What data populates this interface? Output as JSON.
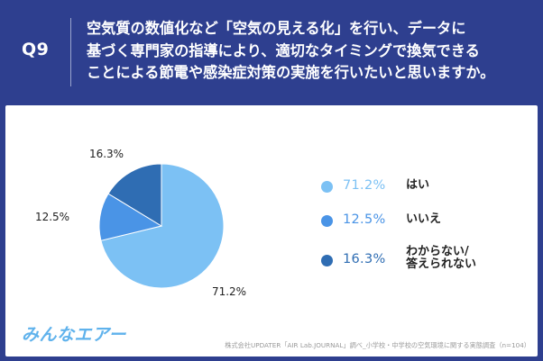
{
  "header": {
    "question_number": "Q9",
    "question_lines": [
      "空気質の数値化など「空気の見える化」を行い、データに",
      "基づく専門家の指導により、適切なタイミングで換気できる",
      "ことによる節電や感染症対策の実施を行いたいと思いますか。"
    ]
  },
  "colors": {
    "header_bg": "#2e3f8f",
    "yes": "#7cc1f4",
    "no": "#4a94e6",
    "unknown": "#2f6db3"
  },
  "chart_data": {
    "type": "pie",
    "start": "12 o'clock",
    "direction": "clockwise",
    "slices": [
      {
        "label": "はい",
        "value": 71.2,
        "display": "71.2%",
        "color": "#7cc1f4"
      },
      {
        "label": "いいえ",
        "value": 12.5,
        "display": "12.5%",
        "color": "#4a94e6"
      },
      {
        "label": "わからない/ 答えられない",
        "value": 16.3,
        "display": "16.3%",
        "color": "#2f6db3"
      }
    ]
  },
  "legend": {
    "items": [
      {
        "pct": "71.2%",
        "label_lines": [
          "はい"
        ],
        "color": "#7cc1f4"
      },
      {
        "pct": "12.5%",
        "label_lines": [
          "いいえ"
        ],
        "color": "#4a94e6"
      },
      {
        "pct": "16.3%",
        "label_lines": [
          "わからない/",
          "答えられない"
        ],
        "color": "#2f6db3"
      }
    ]
  },
  "footer": {
    "logo_text": "みんなエアー",
    "source": "株式会社UPDATER「AIR Lab.JOURNAL」調べ_小学校・中学校の空気環境に関する実態調査（n=104）"
  }
}
